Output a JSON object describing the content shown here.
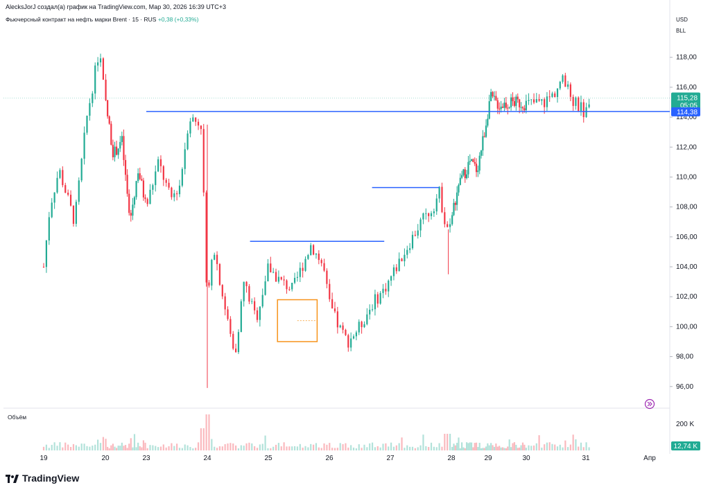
{
  "header": {
    "author_line": "AlecksJorJ создал(а) график на TradingView.com, Мар 30, 2026 16:39 UTC+3",
    "symbol_line": "Фьючерсный контракт на нефть марки Brent · 15 · RUS",
    "change": "+0,38 (+0,33%)",
    "currency": "USD",
    "unit": "BLL"
  },
  "volume_label": "Объём",
  "brand": "TradingView",
  "colors": {
    "up": "#22ab94",
    "down": "#f23645",
    "level_line": "#2962ff",
    "box": "#f7931a",
    "last_price_bg": "#22ab94",
    "level_bg": "#2962ff"
  },
  "chart_data": {
    "type": "candlestick",
    "x_tick_labels": [
      "19",
      "20",
      "23",
      "24",
      "25",
      "26",
      "27",
      "28",
      "29",
      "30",
      "31",
      "Апр"
    ],
    "y_tick_labels": [
      "118,00",
      "116,00",
      "114,00",
      "112,00",
      "110,00",
      "108,00",
      "106,00",
      "104,00",
      "102,00",
      "100,00",
      "98,00",
      "96,00"
    ],
    "ylim": [
      94.6,
      119.7
    ],
    "last_price": {
      "value": "115,28",
      "countdown": "05:05"
    },
    "level_label": "114,38",
    "horizontal_levels": [
      {
        "price": 114.38,
        "from": "23",
        "to": "end"
      },
      {
        "price": 109.3,
        "from": "26.7",
        "to": "27.8"
      },
      {
        "price": 105.7,
        "from": "24.7",
        "to": "26.9"
      }
    ],
    "box": {
      "x_from": "25.15",
      "x_to": "25.8",
      "y_from": 99.0,
      "y_to": 101.8
    },
    "volume": {
      "axis_label": "200 K",
      "last_label": "12,74 K"
    },
    "price_path": [
      [
        0,
        104.0
      ],
      [
        0.1,
        108
      ],
      [
        0.25,
        110.5
      ],
      [
        0.5,
        107
      ],
      [
        0.7,
        114
      ],
      [
        0.9,
        118.5
      ],
      [
        1.0,
        115
      ],
      [
        1.2,
        111.5
      ],
      [
        1.4,
        112.5
      ],
      [
        1.6,
        107
      ],
      [
        1.8,
        110.5
      ],
      [
        2.0,
        108
      ],
      [
        2.2,
        111
      ],
      [
        2.4,
        108.5
      ],
      [
        2.55,
        109.5
      ],
      [
        2.7,
        114
      ],
      [
        2.9,
        113.5
      ],
      [
        3.0,
        101.5
      ],
      [
        3.1,
        105.5
      ],
      [
        3.3,
        101
      ],
      [
        3.45,
        98
      ],
      [
        3.6,
        103
      ],
      [
        3.8,
        100.5
      ],
      [
        4.0,
        104
      ],
      [
        4.2,
        103
      ],
      [
        4.4,
        102.5
      ],
      [
        4.7,
        105.5
      ],
      [
        4.9,
        104
      ],
      [
        5.0,
        101.5
      ],
      [
        5.15,
        100
      ],
      [
        5.3,
        99
      ],
      [
        5.5,
        100
      ],
      [
        5.7,
        101.5
      ],
      [
        5.9,
        102.5
      ],
      [
        6.1,
        104
      ],
      [
        6.3,
        105.5
      ],
      [
        6.5,
        107
      ],
      [
        6.7,
        108
      ],
      [
        6.8,
        109
      ],
      [
        6.95,
        106
      ],
      [
        7.1,
        108.5
      ],
      [
        7.3,
        110
      ],
      [
        7.5,
        111
      ],
      [
        7.7,
        110.5
      ],
      [
        7.9,
        113
      ],
      [
        8.05,
        115.3
      ],
      [
        8.3,
        114.8
      ],
      [
        8.6,
        115
      ],
      [
        9.0,
        114.9
      ],
      [
        9.3,
        115
      ],
      [
        9.45,
        115.5
      ],
      [
        9.6,
        116.5
      ],
      [
        9.8,
        115
      ],
      [
        10.0,
        114.3
      ],
      [
        10.05,
        115.3
      ]
    ]
  }
}
